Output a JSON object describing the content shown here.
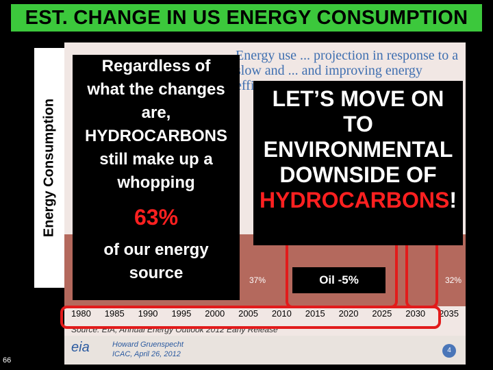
{
  "title": "EST. CHANGE IN US ENERGY CONSUMPTION",
  "y_axis_label": "Energy Consumption",
  "slide_header": "Energy use ... projection in response to a slow and ... and improving energy efficiency",
  "chart": {
    "pct_left": "37%",
    "pct_right": "32%",
    "years": [
      "1980",
      "1985",
      "1990",
      "1995",
      "2000",
      "2005",
      "2010",
      "2015",
      "2020",
      "2025",
      "2030",
      "2035"
    ],
    "source": "Source: EIA, Annual Energy Outlook 2012 Early Release"
  },
  "footer": {
    "logo": "eia",
    "line1": "Howard Gruenspecht",
    "line2": "ICAC, April 26, 2012",
    "page": "4"
  },
  "left_callout": {
    "line1": "Regardless of",
    "line2": "what the changes",
    "line3": "are,",
    "line4": "HYDROCARBONS",
    "line5": "still make up a",
    "line6": "whopping",
    "big": "63%",
    "line7": "of our energy",
    "line8": "source"
  },
  "right_callout": {
    "line1": "LET’S MOVE ON",
    "line2": "TO",
    "line3": "ENVIRONMENTAL",
    "line4": "DOWNSIDE OF",
    "line5_red": "HYDROCARBONS",
    "line5_tail": "!"
  },
  "oil_label": "Oil -5%",
  "slide_number": "66"
}
